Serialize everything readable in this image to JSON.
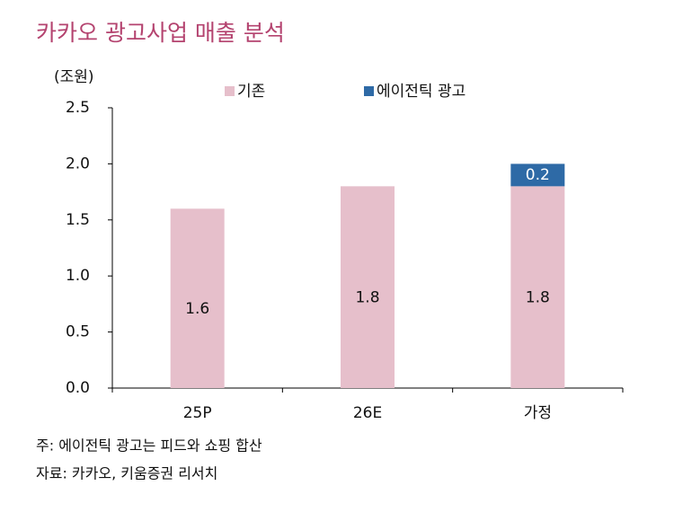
{
  "chart_data": {
    "type": "stacked_bar",
    "title": "카카오 광고사업 매출 분석",
    "y_unit": "(조원)",
    "categories": [
      "25P",
      "26E",
      "가정"
    ],
    "series": [
      {
        "name": "기존",
        "color": "#e6bfcb",
        "values": [
          1.6,
          1.8,
          1.8
        ]
      },
      {
        "name": "에이전틱 광고",
        "color": "#2e6aa6",
        "values": [
          null,
          null,
          0.2
        ]
      }
    ],
    "ylim": [
      0,
      2.5
    ],
    "yticks": [
      {
        "value": 0,
        "label": "0.0"
      },
      0.5,
      {
        "value": 1,
        "label": "1.0"
      },
      1.5,
      {
        "value": 2,
        "label": "2.0"
      },
      2.5
    ],
    "legend": "top",
    "notes": [
      "주: 에이전틱 광고는 피드와 쇼핑 합산",
      "자료: 카카오, 키움증권 리서치"
    ]
  }
}
